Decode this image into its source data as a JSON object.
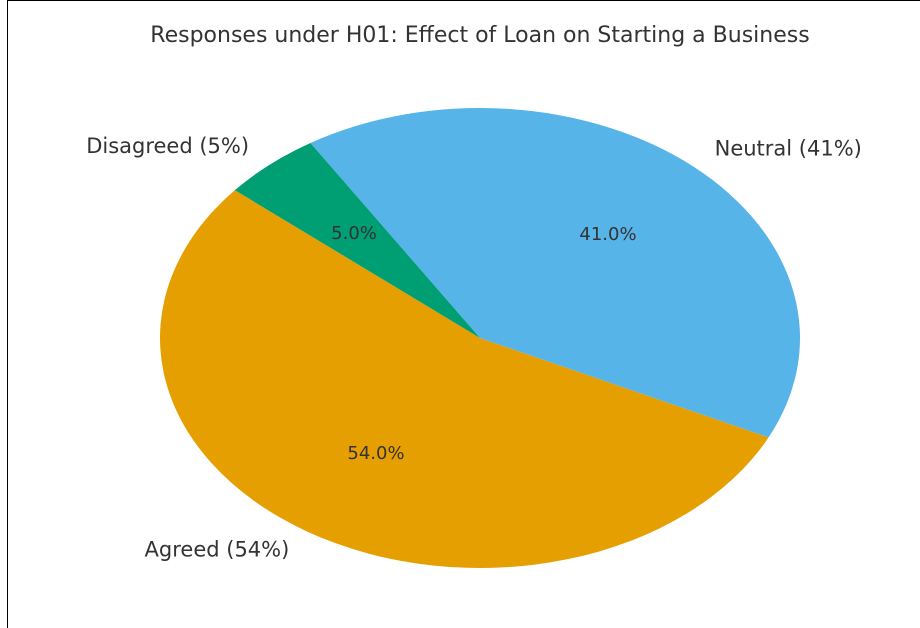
{
  "chart_data": {
    "type": "pie",
    "title": "Responses under H01: Effect of Loan on Starting a Business",
    "categories": [
      "Agreed (54%)",
      "Neutral (41%)",
      "Disagreed (5%)"
    ],
    "values": [
      54,
      41,
      5
    ],
    "value_labels": [
      "54.0%",
      "41.0%",
      "5.0%"
    ],
    "colors": [
      "#E69F00",
      "#56B4E9",
      "#009E73"
    ],
    "startangle": 140
  }
}
